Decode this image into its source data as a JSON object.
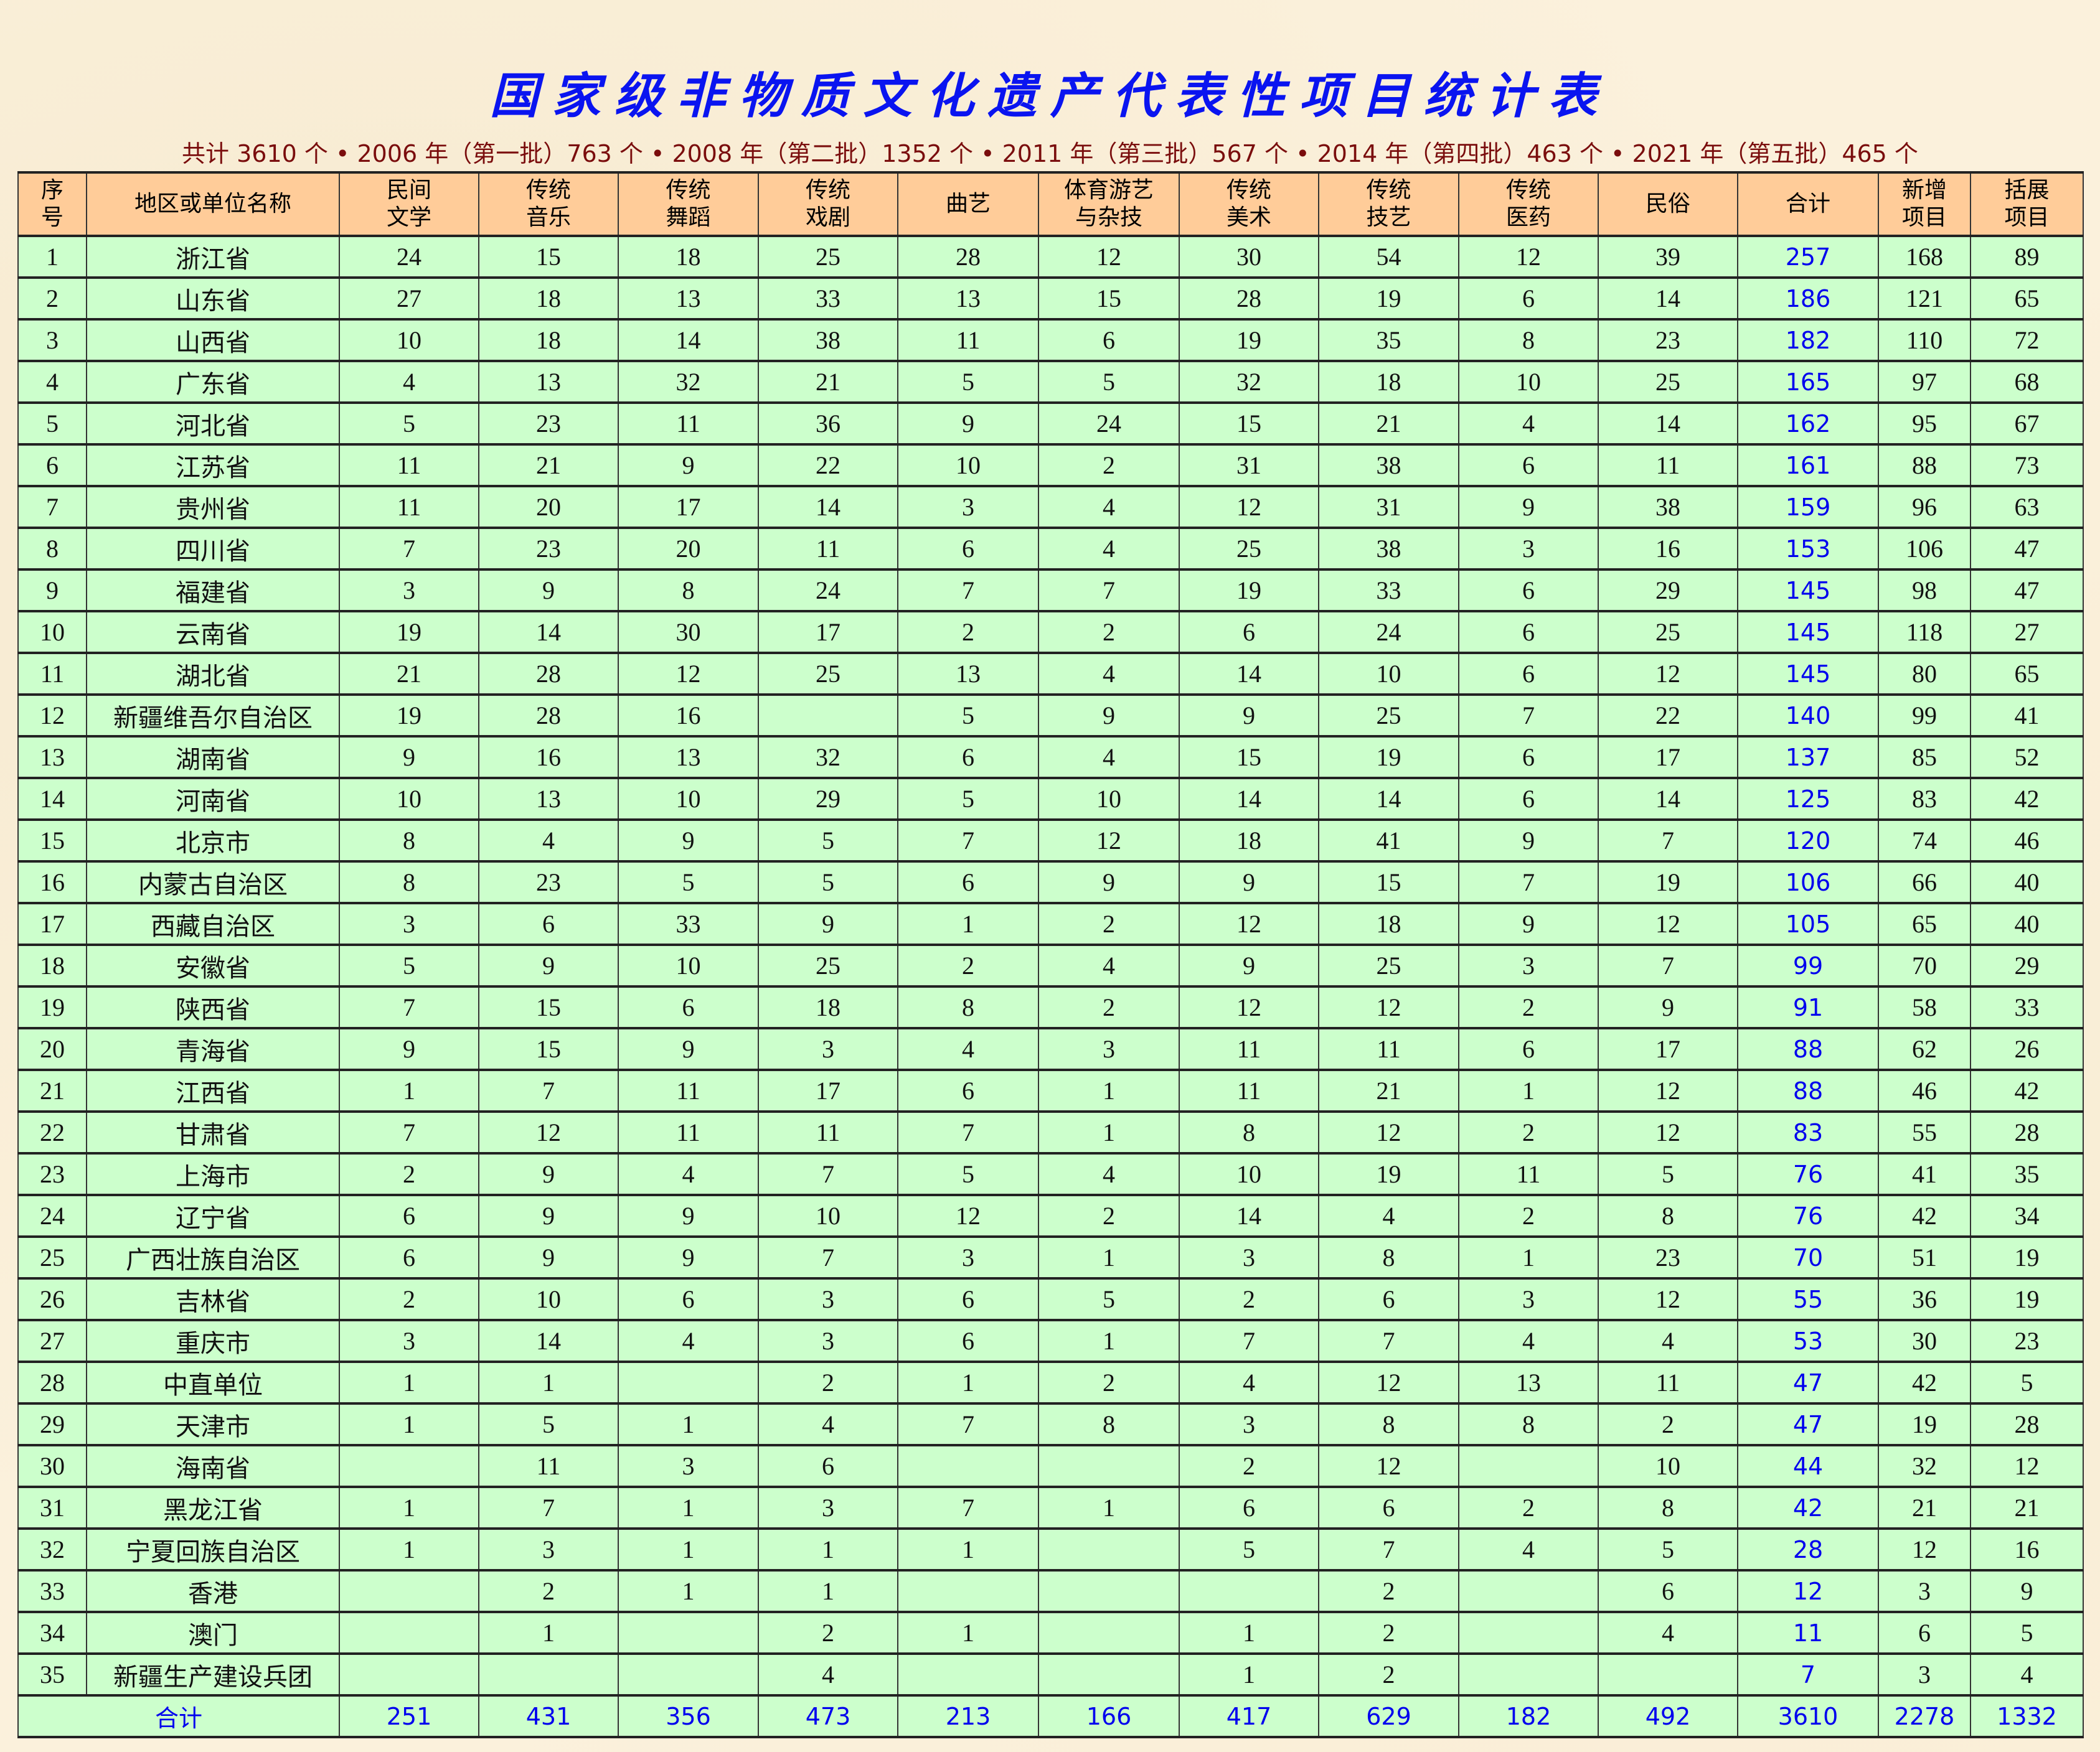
{
  "title": "国家级非物质文化遗产代表性项目统计表",
  "subtitle": "共计 3610 个 • 2006 年（第一批）763 个 • 2008 年（第二批）1352 个 • 2011 年（第三批）567 个 • 2014 年（第四批）463 个 • 2021 年（第五批）465 个",
  "colors": {
    "title": "#0a14f0",
    "subtitle": "#7a0d0d",
    "header_bg": "#ffcc99",
    "row_bg": "#ccffcc",
    "total_text": "#0000ee"
  },
  "columns": [
    "序\n号",
    "地区或单位名称",
    "民间\n文学",
    "传统\n音乐",
    "传统\n舞蹈",
    "传统\n戏剧",
    "曲艺",
    "体育游艺\n与杂技",
    "传统\n美术",
    "传统\n技艺",
    "传统\n医药",
    "民俗",
    "合计",
    "新增\n项目",
    "括展\n项目"
  ],
  "rows": [
    [
      "1",
      "浙江省",
      "24",
      "15",
      "18",
      "25",
      "28",
      "12",
      "30",
      "54",
      "12",
      "39",
      "257",
      "168",
      "89"
    ],
    [
      "2",
      "山东省",
      "27",
      "18",
      "13",
      "33",
      "13",
      "15",
      "28",
      "19",
      "6",
      "14",
      "186",
      "121",
      "65"
    ],
    [
      "3",
      "山西省",
      "10",
      "18",
      "14",
      "38",
      "11",
      "6",
      "19",
      "35",
      "8",
      "23",
      "182",
      "110",
      "72"
    ],
    [
      "4",
      "广东省",
      "4",
      "13",
      "32",
      "21",
      "5",
      "5",
      "32",
      "18",
      "10",
      "25",
      "165",
      "97",
      "68"
    ],
    [
      "5",
      "河北省",
      "5",
      "23",
      "11",
      "36",
      "9",
      "24",
      "15",
      "21",
      "4",
      "14",
      "162",
      "95",
      "67"
    ],
    [
      "6",
      "江苏省",
      "11",
      "21",
      "9",
      "22",
      "10",
      "2",
      "31",
      "38",
      "6",
      "11",
      "161",
      "88",
      "73"
    ],
    [
      "7",
      "贵州省",
      "11",
      "20",
      "17",
      "14",
      "3",
      "4",
      "12",
      "31",
      "9",
      "38",
      "159",
      "96",
      "63"
    ],
    [
      "8",
      "四川省",
      "7",
      "23",
      "20",
      "11",
      "6",
      "4",
      "25",
      "38",
      "3",
      "16",
      "153",
      "106",
      "47"
    ],
    [
      "9",
      "福建省",
      "3",
      "9",
      "8",
      "24",
      "7",
      "7",
      "19",
      "33",
      "6",
      "29",
      "145",
      "98",
      "47"
    ],
    [
      "10",
      "云南省",
      "19",
      "14",
      "30",
      "17",
      "2",
      "2",
      "6",
      "24",
      "6",
      "25",
      "145",
      "118",
      "27"
    ],
    [
      "11",
      "湖北省",
      "21",
      "28",
      "12",
      "25",
      "13",
      "4",
      "14",
      "10",
      "6",
      "12",
      "145",
      "80",
      "65"
    ],
    [
      "12",
      "新疆维吾尔自治区",
      "19",
      "28",
      "16",
      "",
      "5",
      "9",
      "9",
      "25",
      "7",
      "22",
      "140",
      "99",
      "41"
    ],
    [
      "13",
      "湖南省",
      "9",
      "16",
      "13",
      "32",
      "6",
      "4",
      "15",
      "19",
      "6",
      "17",
      "137",
      "85",
      "52"
    ],
    [
      "14",
      "河南省",
      "10",
      "13",
      "10",
      "29",
      "5",
      "10",
      "14",
      "14",
      "6",
      "14",
      "125",
      "83",
      "42"
    ],
    [
      "15",
      "北京市",
      "8",
      "4",
      "9",
      "5",
      "7",
      "12",
      "18",
      "41",
      "9",
      "7",
      "120",
      "74",
      "46"
    ],
    [
      "16",
      "内蒙古自治区",
      "8",
      "23",
      "5",
      "5",
      "6",
      "9",
      "9",
      "15",
      "7",
      "19",
      "106",
      "66",
      "40"
    ],
    [
      "17",
      "西藏自治区",
      "3",
      "6",
      "33",
      "9",
      "1",
      "2",
      "12",
      "18",
      "9",
      "12",
      "105",
      "65",
      "40"
    ],
    [
      "18",
      "安徽省",
      "5",
      "9",
      "10",
      "25",
      "2",
      "4",
      "9",
      "25",
      "3",
      "7",
      "99",
      "70",
      "29"
    ],
    [
      "19",
      "陕西省",
      "7",
      "15",
      "6",
      "18",
      "8",
      "2",
      "12",
      "12",
      "2",
      "9",
      "91",
      "58",
      "33"
    ],
    [
      "20",
      "青海省",
      "9",
      "15",
      "9",
      "3",
      "4",
      "3",
      "11",
      "11",
      "6",
      "17",
      "88",
      "62",
      "26"
    ],
    [
      "21",
      "江西省",
      "1",
      "7",
      "11",
      "17",
      "6",
      "1",
      "11",
      "21",
      "1",
      "12",
      "88",
      "46",
      "42"
    ],
    [
      "22",
      "甘肃省",
      "7",
      "12",
      "11",
      "11",
      "7",
      "1",
      "8",
      "12",
      "2",
      "12",
      "83",
      "55",
      "28"
    ],
    [
      "23",
      "上海市",
      "2",
      "9",
      "4",
      "7",
      "5",
      "4",
      "10",
      "19",
      "11",
      "5",
      "76",
      "41",
      "35"
    ],
    [
      "24",
      "辽宁省",
      "6",
      "9",
      "9",
      "10",
      "12",
      "2",
      "14",
      "4",
      "2",
      "8",
      "76",
      "42",
      "34"
    ],
    [
      "25",
      "广西壮族自治区",
      "6",
      "9",
      "9",
      "7",
      "3",
      "1",
      "3",
      "8",
      "1",
      "23",
      "70",
      "51",
      "19"
    ],
    [
      "26",
      "吉林省",
      "2",
      "10",
      "6",
      "3",
      "6",
      "5",
      "2",
      "6",
      "3",
      "12",
      "55",
      "36",
      "19"
    ],
    [
      "27",
      "重庆市",
      "3",
      "14",
      "4",
      "3",
      "6",
      "1",
      "7",
      "7",
      "4",
      "4",
      "53",
      "30",
      "23"
    ],
    [
      "28",
      "中直单位",
      "1",
      "1",
      "",
      "2",
      "1",
      "2",
      "4",
      "12",
      "13",
      "11",
      "47",
      "42",
      "5"
    ],
    [
      "29",
      "天津市",
      "1",
      "5",
      "1",
      "4",
      "7",
      "8",
      "3",
      "8",
      "8",
      "2",
      "47",
      "19",
      "28"
    ],
    [
      "30",
      "海南省",
      "",
      "11",
      "3",
      "6",
      "",
      "",
      "2",
      "12",
      "",
      "10",
      "44",
      "32",
      "12"
    ],
    [
      "31",
      "黑龙江省",
      "1",
      "7",
      "1",
      "3",
      "7",
      "1",
      "6",
      "6",
      "2",
      "8",
      "42",
      "21",
      "21"
    ],
    [
      "32",
      "宁夏回族自治区",
      "1",
      "3",
      "1",
      "1",
      "1",
      "",
      "5",
      "7",
      "4",
      "5",
      "28",
      "12",
      "16"
    ],
    [
      "33",
      "香港",
      "",
      "2",
      "1",
      "1",
      "",
      "",
      "",
      "2",
      "",
      "6",
      "12",
      "3",
      "9"
    ],
    [
      "34",
      "澳门",
      "",
      "1",
      "",
      "2",
      "1",
      "",
      "1",
      "2",
      "",
      "4",
      "11",
      "6",
      "5"
    ],
    [
      "35",
      "新疆生产建设兵团",
      "",
      "",
      "",
      "4",
      "",
      "",
      "1",
      "2",
      "",
      "",
      "7",
      "3",
      "4"
    ]
  ],
  "total_row": {
    "label": "合计",
    "values": [
      "251",
      "431",
      "356",
      "473",
      "213",
      "166",
      "417",
      "629",
      "182",
      "492",
      "3610",
      "2278",
      "1332"
    ]
  }
}
